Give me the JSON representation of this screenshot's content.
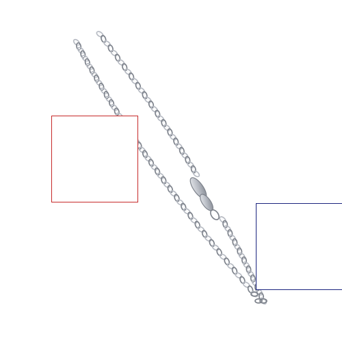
{
  "image": {
    "subject": "silver-curb-chain-necklace",
    "background_color": "#ffffff",
    "chain_color": "#b8bcc4",
    "chain_highlight_color": "#eef0f3",
    "chain_shadow_color": "#7d828b"
  },
  "overlays": [
    {
      "name": "red-selection-box",
      "color": "#c62828"
    },
    {
      "name": "blue-selection-box",
      "color": "#1a237e"
    }
  ]
}
